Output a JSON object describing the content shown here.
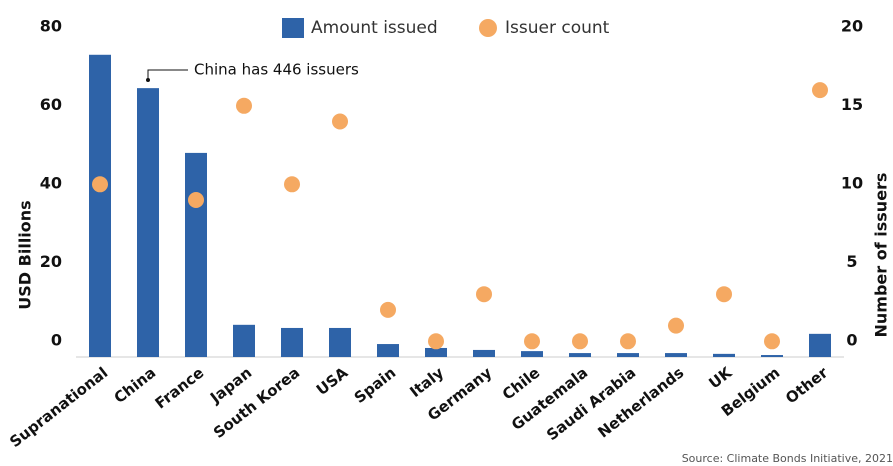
{
  "chart_data": {
    "type": "bar_dot",
    "categories": [
      "Supranational",
      "China",
      "France",
      "Japan",
      "South Korea",
      "USA",
      "Spain",
      "Italy",
      "Germany",
      "Chile",
      "Guatemala",
      "Saudi Arabia",
      "Netherlands",
      "UK",
      "Belgium",
      "Other"
    ],
    "series": [
      {
        "name": "Amount issued",
        "color": "#2e63a8",
        "values": [
          77,
          68.5,
          52,
          8.2,
          7.4,
          7.4,
          3.3,
          2.3,
          1.8,
          1.5,
          1.0,
          1.0,
          1.0,
          0.8,
          0.5,
          5.9
        ]
      },
      {
        "name": "Issuer count",
        "color": "#f5a962",
        "axis": "y2",
        "values": [
          11,
          null,
          10,
          16,
          11,
          15,
          3,
          1,
          4,
          1,
          1,
          1,
          2,
          4,
          1,
          17
        ]
      }
    ],
    "ylabel": "USD Billions",
    "y2label": "Number of issuers",
    "ylim": [
      0,
      80
    ],
    "yticks": [
      0,
      20,
      40,
      60,
      80
    ],
    "y2lim": [
      0,
      20
    ],
    "y2ticks": [
      0,
      5,
      10,
      15,
      20
    ],
    "annotation": "China has 446 issuers",
    "source": "Source: Climate Bonds Initiative, 2021"
  }
}
